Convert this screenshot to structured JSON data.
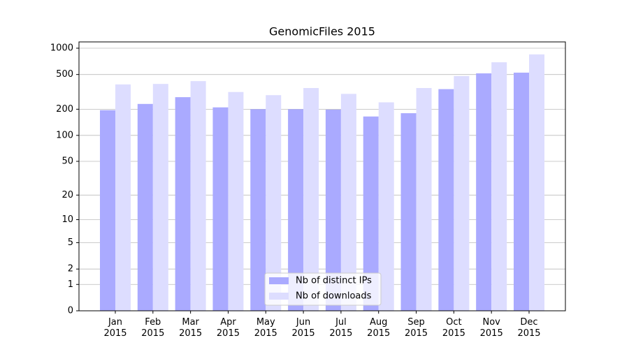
{
  "chart_data": {
    "type": "bar",
    "title": "GenomicFiles 2015",
    "categories": [
      "Jan 2015",
      "Feb 2015",
      "Mar 2015",
      "Apr 2015",
      "May 2015",
      "Jun 2015",
      "Jul 2015",
      "Aug 2015",
      "Sep 2015",
      "Oct 2015",
      "Nov 2015",
      "Dec 2015"
    ],
    "series": [
      {
        "name": "Nb of distinct IPs",
        "color": "#aaaaff",
        "values": [
          195,
          230,
          275,
          210,
          200,
          200,
          198,
          165,
          180,
          340,
          515,
          525
        ]
      },
      {
        "name": "Nb of downloads",
        "color": "#ddddff",
        "values": [
          385,
          390,
          420,
          315,
          290,
          350,
          300,
          240,
          350,
          480,
          690,
          850
        ]
      }
    ],
    "yscale": "log1p",
    "ylim": [
      0,
      1180
    ],
    "yticks": [
      0,
      1,
      2,
      5,
      10,
      20,
      50,
      100,
      200,
      500,
      1000
    ],
    "grid": true,
    "legend": "lower center"
  }
}
